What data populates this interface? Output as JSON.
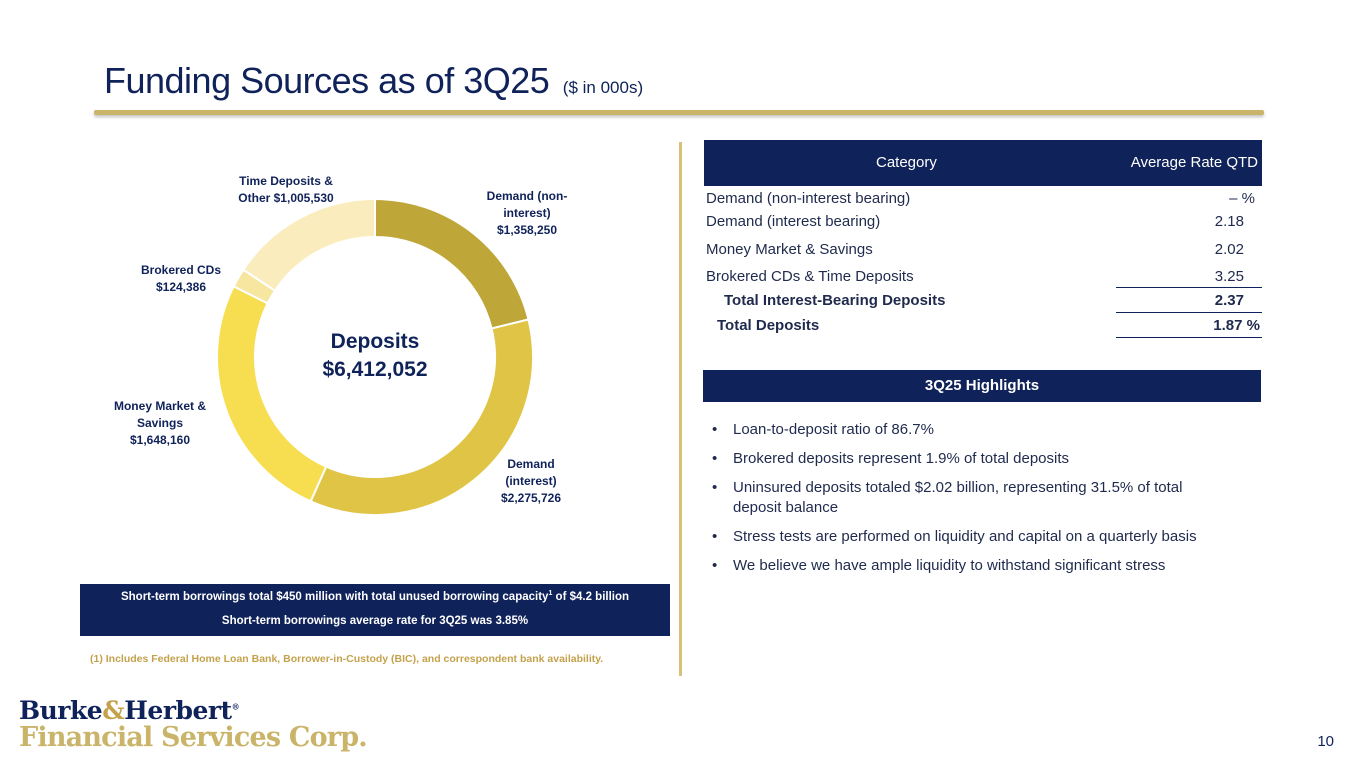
{
  "title": {
    "main": "Funding Sources as of 3Q25",
    "sub": "($ in 000s)"
  },
  "chart_data": {
    "type": "pie",
    "style": "donut",
    "center_label": {
      "line1": "Deposits",
      "line2": "$6,412,052"
    },
    "total": 6412052,
    "slices": [
      {
        "name": "Demand (non-interest)",
        "label_lines": [
          "Demand (non-",
          "interest)",
          "$1,358,250"
        ],
        "value": 1358250,
        "color": "#bea638"
      },
      {
        "name": "Demand (interest)",
        "label_lines": [
          "Demand",
          "(interest)",
          "$2,275,726"
        ],
        "value": 2275726,
        "color": "#e0c445"
      },
      {
        "name": "Money Market & Savings",
        "label_lines": [
          "Money Market &",
          "Savings",
          "$1,648,160"
        ],
        "value": 1648160,
        "color": "#f7dd50"
      },
      {
        "name": "Brokered CDs",
        "label_lines": [
          "Brokered CDs",
          "$124,386"
        ],
        "value": 124386,
        "color": "#f7e6a0"
      },
      {
        "name": "Time Deposits & Other",
        "label_lines": [
          "Time Deposits &",
          "Other $1,005,530"
        ],
        "value": 1005530,
        "color": "#faecbd"
      }
    ]
  },
  "borrowings": {
    "line1_text": "Short-term borrowings total $450 million with total unused borrowing capacity",
    "line1_sup": "1",
    "line1_end": " of $4.2 billion",
    "line2": "Short-term borrowings average rate for 3Q25 was 3.85%"
  },
  "footnote": "(1) Includes Federal Home Loan Bank, Borrower-in-Custody (BIC), and correspondent bank availability.",
  "table": {
    "headers": {
      "category": "Category",
      "rate": "Average Rate QTD"
    },
    "rows": [
      {
        "label": "Demand (non-interest bearing)",
        "value": "– %"
      },
      {
        "label": "Demand (interest bearing)",
        "value": "2.18"
      },
      {
        "label": "Money Market & Savings",
        "value": "2.02"
      },
      {
        "label": "Brokered CDs & Time Deposits",
        "value": "3.25"
      },
      {
        "label": "Total Interest-Bearing Deposits",
        "value": "2.37"
      },
      {
        "label": "Total Deposits",
        "value": "1.87 %"
      }
    ]
  },
  "highlights": {
    "title": "3Q25 Highlights",
    "bullet_char": "•",
    "items": [
      "Loan-to-deposit ratio of 86.7%",
      "Brokered deposits represent 1.9% of total deposits",
      "Uninsured deposits totaled $2.02 billion, representing 31.5% of total deposit balance",
      "Stress tests are performed on liquidity and capital on a quarterly basis",
      "We believe we have ample liquidity to withstand significant stress"
    ]
  },
  "logo": {
    "line1_a": "Burke",
    "line1_amp": "&",
    "line1_b": "Herbert",
    "reg": "®",
    "line2": "Financial Services Corp."
  },
  "page_number": "10"
}
